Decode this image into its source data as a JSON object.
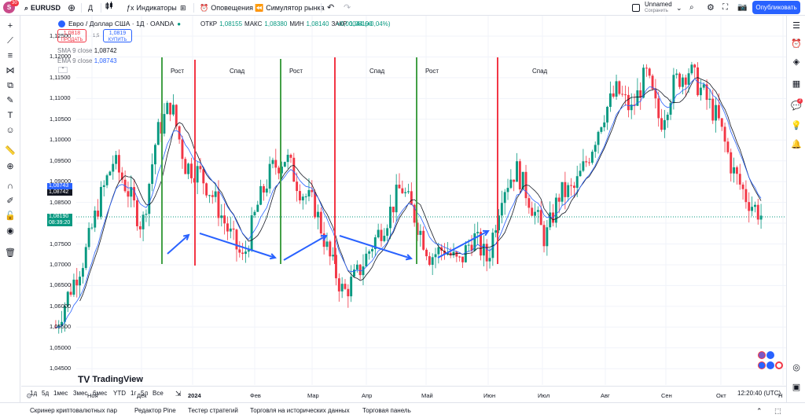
{
  "topbar": {
    "avatar_letter": "S",
    "avatar_badge": "30",
    "symbol": "EURUSD",
    "interval": "Д",
    "indicators": "Индикаторы",
    "alerts": "Оповещения",
    "replay": "Симулятор рынка",
    "layout_name": "Unnamed",
    "save": "Сохранить",
    "publish": "Опубликовать"
  },
  "legend": {
    "title": "Евро / Доллар США · 1Д · OANDA",
    "ohlc": [
      {
        "label": "ОТКР",
        "value": "1,08155"
      },
      {
        "label": "МАКС",
        "value": "1,08380"
      },
      {
        "label": "МИН",
        "value": "1,08140"
      },
      {
        "label": "ЗАКР",
        "value": "1,08190"
      }
    ],
    "change": "+0,00044 (+0,04%)",
    "sell_price": "1,0818",
    "sell_sup": "8",
    "sell_label": "ПРОДАТЬ",
    "spread": "1,5",
    "buy_price": "1,0819",
    "buy_sup": "8",
    "buy_label": "КУПИТЬ",
    "sma_label": "SMA 9 close",
    "sma_value": "1,08742",
    "ema_label": "EMA 9 close",
    "ema_value": "1,08743"
  },
  "price_axis": {
    "ticks": [
      "1,12500",
      "1,12000",
      "1,11500",
      "1,11000",
      "1,10500",
      "1,10000",
      "1,09500",
      "1,09000",
      "1,08500",
      "1,08000",
      "1,07500",
      "1,07000",
      "1,06500",
      "1,06000",
      "1,05500",
      "1,05000",
      "1,04500"
    ],
    "ema_tag": "1,08743",
    "sma_tag": "1,08742",
    "last_price": "1,08190",
    "countdown": "08:39:20"
  },
  "time_axis": [
    "Ноя",
    "Дек",
    "2024",
    "Фев",
    "Мар",
    "Апр",
    "Май",
    "Июн",
    "Июл",
    "Авг",
    "Сен",
    "Окт",
    "Н"
  ],
  "phases": [
    {
      "label": "Рост",
      "color": "#43a047"
    },
    {
      "label": "Спад",
      "color": "#f23645"
    },
    {
      "label": "Рост",
      "color": "#43a047"
    },
    {
      "label": "Спад",
      "color": "#f23645"
    },
    {
      "label": "Рост",
      "color": "#43a047"
    },
    {
      "label": "Спад",
      "color": "#f23645"
    }
  ],
  "colors": {
    "up": "#089981",
    "down": "#f23645",
    "sma": "#131722",
    "ema": "#2962ff",
    "accent": "#2962ff"
  },
  "watermark": "TradingView",
  "range_buttons": [
    "1д",
    "5д",
    "1мес",
    "3мес",
    "6мес",
    "YTD",
    "1г",
    "5л",
    "Все"
  ],
  "clock": "12:20:40 (UTC)",
  "bottom_panels": [
    "Скринер криптовалютных пар",
    "Редактор Pine",
    "Тестер стратегий",
    "Торговля на исторических данных",
    "Торговая панель"
  ],
  "chart_data": {
    "type": "candlestick",
    "instrument": "EURUSD",
    "ylim": [
      1.045,
      1.125
    ],
    "months": [
      "Ноя",
      "Дек",
      "2024",
      "Фев",
      "Мар",
      "Апр",
      "Май",
      "Июн",
      "Июл",
      "Авг",
      "Сен",
      "Окт"
    ],
    "close_path": [
      1.055,
      1.064,
      1.072,
      1.085,
      1.095,
      1.088,
      1.079,
      1.101,
      1.109,
      1.094,
      1.092,
      1.086,
      1.078,
      1.071,
      1.084,
      1.093,
      1.096,
      1.088,
      1.084,
      1.072,
      1.063,
      1.068,
      1.075,
      1.081,
      1.089,
      1.081,
      1.072,
      1.074,
      1.07,
      1.077,
      1.071,
      1.088,
      1.093,
      1.085,
      1.076,
      1.087,
      1.088,
      1.096,
      1.106,
      1.112,
      1.107,
      1.116,
      1.104,
      1.114,
      1.117,
      1.111,
      1.105,
      1.093,
      1.086,
      1.082
    ]
  }
}
